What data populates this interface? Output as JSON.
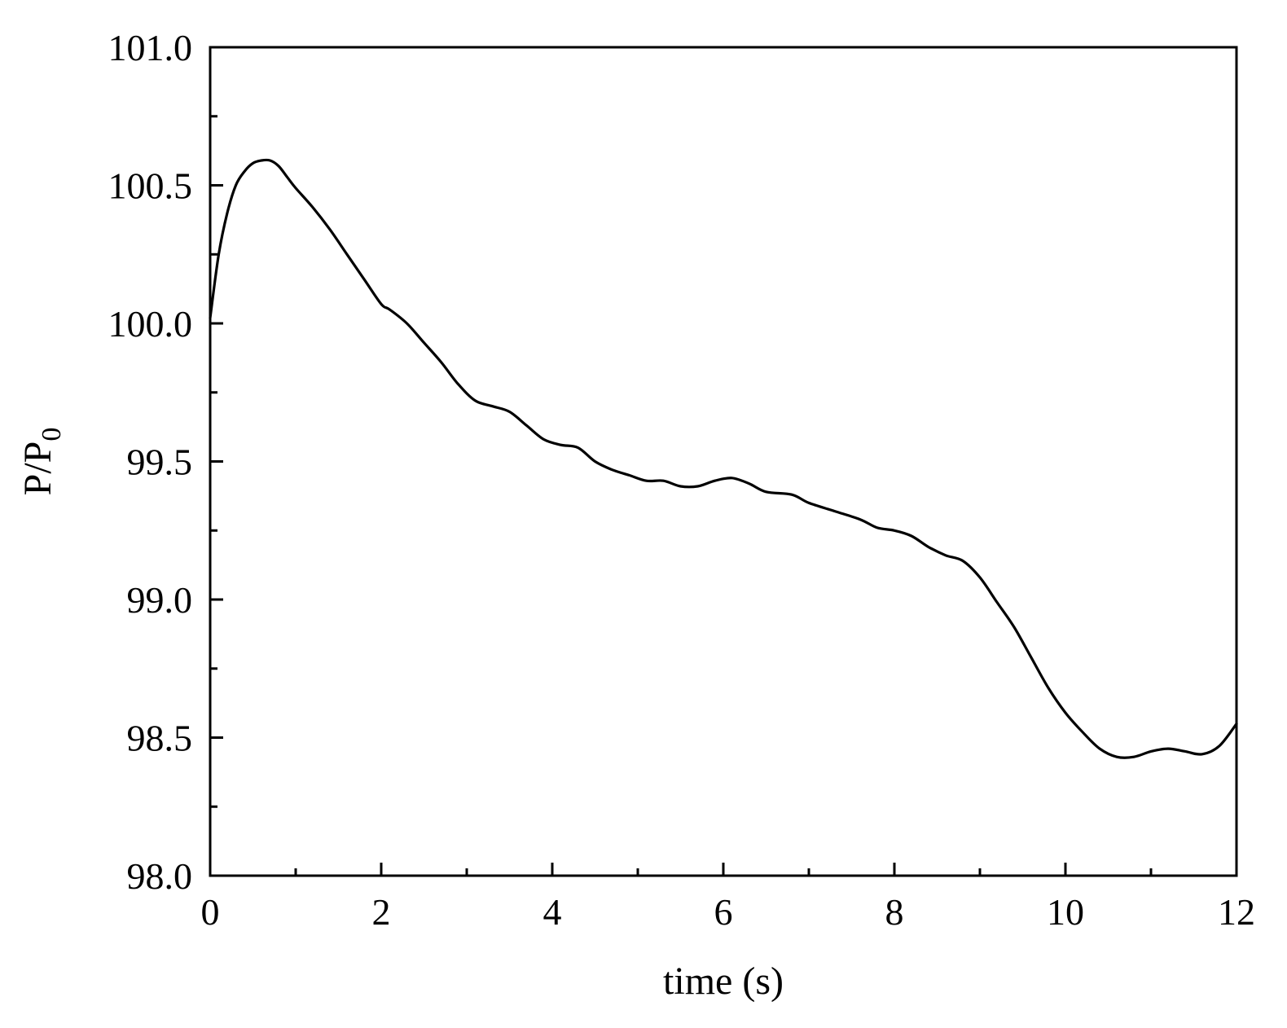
{
  "chart_data": {
    "type": "line",
    "xlabel": "time (s)",
    "ylabel_main": "P/P",
    "ylabel_sub": "0",
    "xlim": [
      0,
      12
    ],
    "ylim": [
      98.0,
      101.0
    ],
    "x_ticks": [
      0,
      2,
      4,
      6,
      8,
      10,
      12
    ],
    "x_tick_labels": [
      "0",
      "2",
      "4",
      "6",
      "8",
      "10",
      "12"
    ],
    "x_minor_ticks": [
      1,
      3,
      5,
      7,
      9,
      11
    ],
    "y_ticks": [
      98.0,
      98.5,
      99.0,
      99.5,
      100.0,
      100.5,
      101.0
    ],
    "y_tick_labels": [
      "98.0",
      "98.5",
      "99.0",
      "99.5",
      "100.0",
      "100.5",
      "101.0"
    ],
    "y_minor_ticks": [
      98.25,
      98.75,
      99.25,
      99.75,
      100.25,
      100.75
    ],
    "grid": false,
    "series": [
      {
        "x": [
          0,
          0.1,
          0.2,
          0.3,
          0.4,
          0.5,
          0.6,
          0.7,
          0.8,
          0.9,
          1.0,
          1.2,
          1.4,
          1.6,
          1.8,
          2.0,
          2.1,
          2.3,
          2.5,
          2.7,
          2.9,
          3.1,
          3.3,
          3.5,
          3.7,
          3.9,
          4.1,
          4.3,
          4.5,
          4.7,
          4.9,
          5.1,
          5.3,
          5.5,
          5.7,
          5.9,
          6.1,
          6.3,
          6.5,
          6.8,
          7.0,
          7.3,
          7.6,
          7.8,
          8.0,
          8.2,
          8.4,
          8.6,
          8.8,
          9.0,
          9.2,
          9.4,
          9.6,
          9.8,
          10.0,
          10.2,
          10.4,
          10.6,
          10.8,
          11.0,
          11.2,
          11.4,
          11.6,
          11.8,
          12.0
        ],
        "y": [
          100.02,
          100.25,
          100.4,
          100.5,
          100.55,
          100.58,
          100.59,
          100.59,
          100.57,
          100.53,
          100.49,
          100.42,
          100.34,
          100.25,
          100.16,
          100.07,
          100.05,
          100.0,
          99.93,
          99.86,
          99.78,
          99.72,
          99.7,
          99.68,
          99.63,
          99.58,
          99.56,
          99.55,
          99.5,
          99.47,
          99.45,
          99.43,
          99.43,
          99.41,
          99.41,
          99.43,
          99.44,
          99.42,
          99.39,
          99.38,
          99.35,
          99.32,
          99.29,
          99.26,
          99.25,
          99.23,
          99.19,
          99.16,
          99.14,
          99.08,
          98.99,
          98.9,
          98.79,
          98.68,
          98.59,
          98.52,
          98.46,
          98.43,
          98.43,
          98.45,
          98.46,
          98.45,
          98.44,
          98.47,
          98.55
        ]
      }
    ]
  }
}
